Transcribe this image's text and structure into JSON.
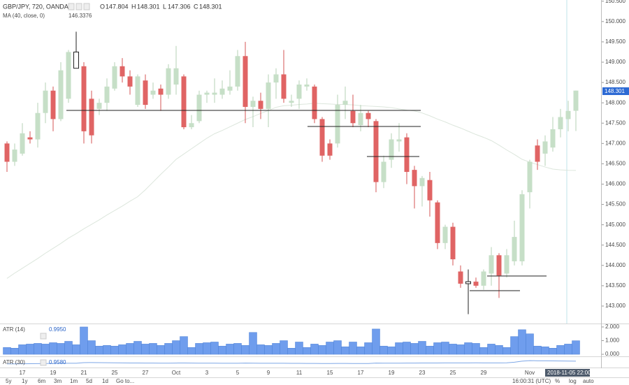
{
  "chart_data": {
    "type": "candlestick",
    "symbol": "GBP/JPY, 720, OANDA",
    "ohlc_labels": [
      "O",
      "H",
      "L",
      "C"
    ],
    "up_color": "#c6dfc7",
    "down_color": "#e06464",
    "highlight_color": "#ffffff",
    "highlighted": [
      9,
      60
    ],
    "categories": [
      null,
      null,
      "17",
      null,
      null,
      null,
      "19",
      null,
      null,
      null,
      "21",
      null,
      null,
      null,
      "25",
      null,
      null,
      null,
      "27",
      null,
      null,
      null,
      "Oct",
      null,
      null,
      null,
      "3",
      null,
      null,
      null,
      "5",
      null,
      null,
      null,
      "9",
      null,
      null,
      null,
      "11",
      null,
      null,
      null,
      "15",
      null,
      null,
      null,
      "17",
      null,
      null,
      null,
      "19",
      null,
      null,
      null,
      "23",
      null,
      null,
      null,
      "25",
      null,
      null,
      null,
      "29",
      null,
      null,
      null,
      null,
      null,
      "Nov",
      null,
      null,
      null,
      null,
      null,
      null
    ],
    "open": [
      147.0,
      146.55,
      146.75,
      147.15,
      147.1,
      147.75,
      148.3,
      147.6,
      148.1,
      148.85,
      148.9,
      148.1,
      147.85,
      148.0,
      148.35,
      148.9,
      148.65,
      147.95,
      148.55,
      148.2,
      148.35,
      148.2,
      148.45,
      148.65,
      147.4,
      147.55,
      148.2,
      148.2,
      148.2,
      148.3,
      148.4,
      149.15,
      147.9,
      148.05,
      147.85,
      148.5,
      148.7,
      148.0,
      148.1,
      148.4,
      148.4,
      147.6,
      147.0,
      147.0,
      147.95,
      147.8,
      147.45,
      147.75,
      147.55,
      146.05,
      146.6,
      147.05,
      147.15,
      146.35,
      145.95,
      146.1,
      145.55,
      144.55,
      144.95,
      143.85,
      143.6,
      143.6,
      143.5,
      143.8,
      144.25,
      143.8,
      144.1,
      144.1,
      145.8,
      146.95,
      146.75,
      146.9,
      147.35,
      147.6,
      147.804
    ],
    "high": [
      147.05,
      147.0,
      147.5,
      147.3,
      148.0,
      148.5,
      148.4,
      149.0,
      149.3,
      149.75,
      149.0,
      148.3,
      148.1,
      148.6,
      149.0,
      149.1,
      148.8,
      148.7,
      148.7,
      148.5,
      148.45,
      148.95,
      149.4,
      148.7,
      147.7,
      148.3,
      148.3,
      148.6,
      148.55,
      148.8,
      149.3,
      149.5,
      148.15,
      148.25,
      148.7,
      148.85,
      149.3,
      148.2,
      148.55,
      148.6,
      148.45,
      147.65,
      147.1,
      148.2,
      148.4,
      148.2,
      147.95,
      147.8,
      147.6,
      146.7,
      147.25,
      147.5,
      147.25,
      146.45,
      146.2,
      146.3,
      145.6,
      145.0,
      145.05,
      144.0,
      143.9,
      143.7,
      143.9,
      144.45,
      144.3,
      144.4,
      145.1,
      145.85,
      146.6,
      147.1,
      147.2,
      147.65,
      147.85,
      148.05,
      148.301
    ],
    "low": [
      146.3,
      146.45,
      146.7,
      147.0,
      146.9,
      147.5,
      147.3,
      147.55,
      148.0,
      148.85,
      147.0,
      147.0,
      147.7,
      147.8,
      148.3,
      148.5,
      148.2,
      147.9,
      147.85,
      148.1,
      147.8,
      148.1,
      148.2,
      147.35,
      147.35,
      147.5,
      148.0,
      148.0,
      148.1,
      148.2,
      148.3,
      147.5,
      147.4,
      147.6,
      147.4,
      148.1,
      148.0,
      147.9,
      147.85,
      148.3,
      147.5,
      146.55,
      146.6,
      146.9,
      147.6,
      147.4,
      147.3,
      147.4,
      145.8,
      145.9,
      146.4,
      146.8,
      146.0,
      145.4,
      145.45,
      145.2,
      144.4,
      144.4,
      144.0,
      143.45,
      142.8,
      143.45,
      143.4,
      143.5,
      143.2,
      143.7,
      144.0,
      144.0,
      145.4,
      146.35,
      146.45,
      146.8,
      147.15,
      147.3,
      147.306
    ],
    "close": [
      146.55,
      146.85,
      147.25,
      147.1,
      147.75,
      148.3,
      147.6,
      148.8,
      149.25,
      149.25,
      147.3,
      147.2,
      148.0,
      148.4,
      148.9,
      148.65,
      148.4,
      148.65,
      147.95,
      148.3,
      148.2,
      148.85,
      148.85,
      147.4,
      147.5,
      148.2,
      148.25,
      148.25,
      148.35,
      148.4,
      149.15,
      147.9,
      148.05,
      147.85,
      148.5,
      148.7,
      148.1,
      148.05,
      148.45,
      148.45,
      147.6,
      146.7,
      146.7,
      147.95,
      148.05,
      147.5,
      147.75,
      147.6,
      146.05,
      146.55,
      147.1,
      147.1,
      146.3,
      145.95,
      146.15,
      145.6,
      144.55,
      144.95,
      144.15,
      143.55,
      143.55,
      143.5,
      143.85,
      144.25,
      143.75,
      144.25,
      144.7,
      145.75,
      146.55,
      146.55,
      147.05,
      147.35,
      147.65,
      147.8,
      148.301
    ],
    "ma": {
      "name": "MA (40, close, 0)",
      "color": "#dce6dc",
      "values": [
        143.68,
        143.81,
        143.93,
        144.05,
        144.17,
        144.3,
        144.42,
        144.54,
        144.67,
        144.78,
        144.9,
        145.01,
        145.12,
        145.24,
        145.35,
        145.46,
        145.58,
        145.69,
        145.86,
        146.05,
        146.24,
        146.42,
        146.61,
        146.74,
        146.87,
        147.0,
        147.13,
        147.24,
        147.32,
        147.41,
        147.5,
        147.59,
        147.66,
        147.74,
        147.81,
        147.89,
        147.93,
        147.94,
        147.96,
        147.97,
        147.99,
        147.98,
        147.97,
        147.96,
        147.96,
        147.95,
        147.93,
        147.92,
        147.91,
        147.9,
        147.88,
        147.85,
        147.82,
        147.8,
        147.75,
        147.68,
        147.6,
        147.53,
        147.45,
        147.38,
        147.3,
        147.22,
        147.15,
        147.07,
        146.96,
        146.84,
        146.73,
        146.61,
        146.54,
        146.48,
        146.42,
        146.37,
        146.35,
        146.34,
        146.3376
      ]
    },
    "ylim": [
      142.57,
      150.53
    ],
    "yticks": [
      {
        "value": 143.0,
        "label": "143.000"
      },
      {
        "value": 143.5,
        "label": "143.500"
      },
      {
        "value": 144.0,
        "label": "144.000"
      },
      {
        "value": 144.5,
        "label": "144.500"
      },
      {
        "value": 145.0,
        "label": "145.000"
      },
      {
        "value": 145.5,
        "label": "145.500"
      },
      {
        "value": 146.0,
        "label": "146.000"
      },
      {
        "value": 146.5,
        "label": "146.500"
      },
      {
        "value": 147.0,
        "label": "147.000"
      },
      {
        "value": 147.5,
        "label": "147.500"
      },
      {
        "value": 148.0,
        "label": "148.000"
      },
      {
        "value": 148.5,
        "label": "148.500"
      },
      {
        "value": 149.0,
        "label": "149.000"
      },
      {
        "value": 149.5,
        "label": "149.500"
      },
      {
        "value": 150.0,
        "label": "150.000"
      },
      {
        "value": 150.5,
        "label": "150.500"
      }
    ],
    "date_badge": "2018-11-05 22:00:00",
    "atr": {
      "name": "ATR (14)",
      "type": "bar",
      "color": "#6f9ded",
      "values": [
        0.5,
        0.45,
        0.7,
        0.75,
        0.8,
        0.75,
        0.85,
        0.8,
        0.95,
        0.7,
        2.0,
        1.0,
        0.6,
        0.65,
        0.6,
        0.7,
        0.8,
        0.95,
        0.75,
        0.8,
        0.65,
        0.8,
        1.0,
        1.3,
        0.5,
        0.8,
        0.85,
        0.9,
        0.6,
        0.75,
        0.8,
        0.65,
        1.6,
        0.7,
        0.65,
        0.8,
        1.0,
        0.45,
        0.9,
        0.5,
        0.75,
        0.65,
        0.9,
        1.0,
        0.55,
        0.9,
        0.55,
        0.85,
        1.85,
        0.6,
        0.55,
        0.85,
        0.9,
        0.8,
        0.95,
        0.6,
        0.85,
        0.9,
        0.75,
        0.7,
        0.85,
        0.8,
        0.5,
        0.75,
        0.65,
        0.5,
        1.3,
        1.8,
        1.5,
        0.6,
        0.55,
        0.45,
        0.65,
        0.75,
        0.995
      ],
      "last_label": "0.9950",
      "ylim": [
        -0.15,
        2.15
      ],
      "yticks": [
        {
          "value": 0,
          "label": "0.000"
        },
        {
          "value": 1,
          "label": "1.000"
        },
        {
          "value": 2,
          "label": "2.000"
        }
      ]
    },
    "atr30": {
      "name": "ATR (30)",
      "type": "line",
      "color": "#7ea7e6",
      "values": [
        0.925,
        0.925,
        0.926,
        0.927,
        0.928,
        0.929,
        0.93,
        0.931,
        0.932,
        0.933,
        0.94,
        0.941,
        0.94,
        0.939,
        0.938,
        0.937,
        0.936,
        0.936,
        0.935,
        0.935,
        0.934,
        0.934,
        0.935,
        0.936,
        0.935,
        0.934,
        0.934,
        0.934,
        0.933,
        0.933,
        0.932,
        0.935,
        0.934,
        0.933,
        0.932,
        0.932,
        0.933,
        0.931,
        0.931,
        0.93,
        0.93,
        0.929,
        0.929,
        0.93,
        0.93,
        0.929,
        0.929,
        0.929,
        0.935,
        0.934,
        0.934,
        0.934,
        0.935,
        0.935,
        0.936,
        0.936,
        0.936,
        0.937,
        0.937,
        0.937,
        0.937,
        0.938,
        0.937,
        0.937,
        0.937,
        0.938,
        0.945,
        0.958,
        0.965,
        0.963,
        0.962,
        0.961,
        0.96,
        0.959,
        0.958
      ],
      "last_label": "0.9580",
      "ylim": [
        0.88,
        1.0
      ]
    },
    "toolbar": {
      "ranges": [
        "5y",
        "1y",
        "6m",
        "3m",
        "1m",
        "5d",
        "1d"
      ],
      "goto": "Go to...",
      "time": "16:00:31 (UTC)",
      "options": [
        "%",
        "log",
        "auto"
      ]
    }
  }
}
